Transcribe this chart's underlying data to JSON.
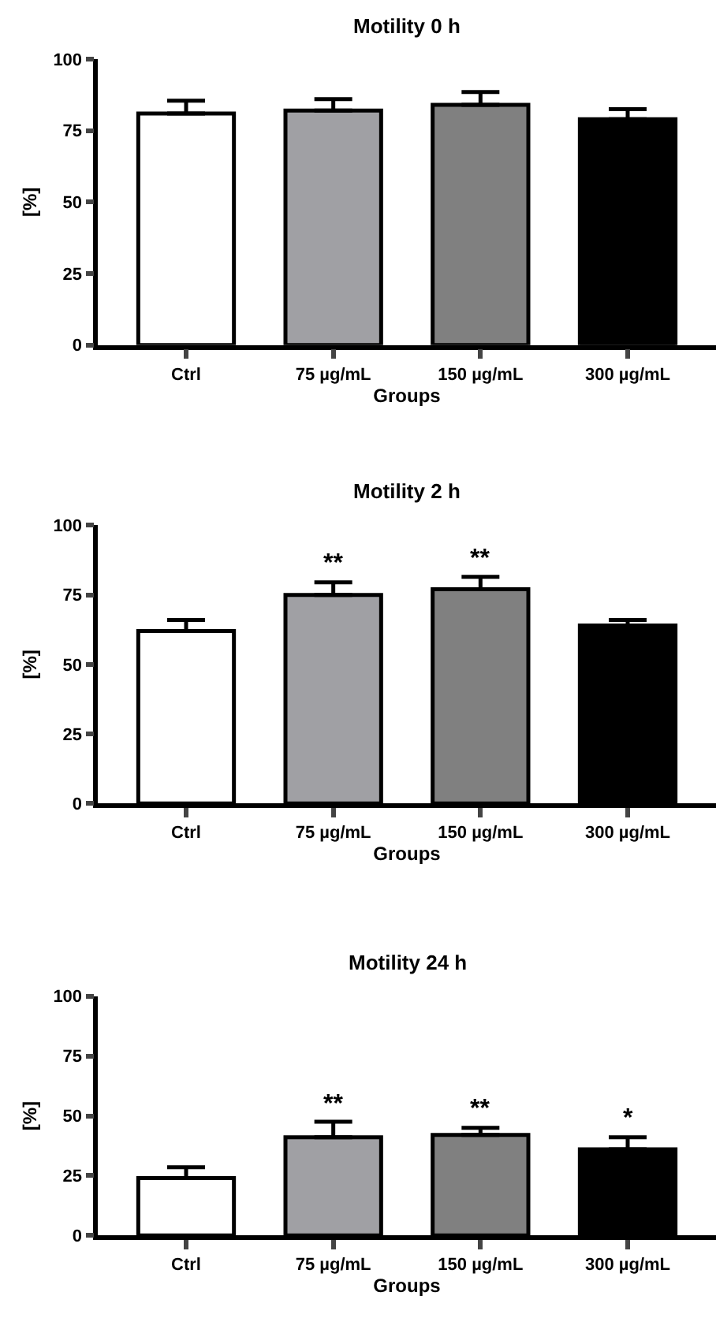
{
  "chart_data": [
    {
      "type": "bar",
      "title": "Motility 0 h",
      "xlabel": "Groups",
      "ylabel": "[%]",
      "categories": [
        "Ctrl",
        "75 µg/mL",
        "150 µg/mL",
        "300 µg/mL"
      ],
      "values": [
        81,
        82,
        84,
        79
      ],
      "colors": [
        "#ffffff",
        "#a0a0a4",
        "#808080",
        "#000000"
      ],
      "errors": [
        [
          81,
          85.5
        ],
        [
          82,
          86
        ],
        [
          84,
          88.5
        ],
        [
          79,
          82.5
        ]
      ],
      "ylim": [
        0,
        100
      ],
      "yticks": [
        0,
        25,
        50,
        75,
        100
      ]
    },
    {
      "type": "bar",
      "title": "Motility 2 h",
      "xlabel": "Groups",
      "ylabel": "[%]",
      "categories": [
        "Ctrl",
        "75 µg/mL",
        "150 µg/mL",
        "300 µg/mL"
      ],
      "values": [
        62,
        75,
        77,
        64
      ],
      "colors": [
        "#ffffff",
        "#a0a0a4",
        "#808080",
        "#000000"
      ],
      "errors": [
        [
          62,
          66
        ],
        [
          75,
          79.5
        ],
        [
          77,
          81.5
        ],
        [
          64,
          66
        ]
      ],
      "ylim": [
        0,
        100
      ],
      "yticks": [
        0,
        25,
        50,
        75,
        100
      ],
      "annotations": [
        {
          "text": "**",
          "x": "75 µg/mL",
          "y": 79.5
        },
        {
          "text": "**",
          "x": "150 µg/mL",
          "y": 81.5
        }
      ]
    },
    {
      "type": "bar",
      "title": "Motility 24 h",
      "xlabel": "Groups",
      "ylabel": "[%]",
      "categories": [
        "Ctrl",
        "75 µg/mL",
        "150 µg/mL",
        "300 µg/mL"
      ],
      "values": [
        24,
        41,
        42,
        36
      ],
      "colors": [
        "#ffffff",
        "#a0a0a4",
        "#808080",
        "#000000"
      ],
      "errors": [
        [
          24,
          28.5
        ],
        [
          41,
          47.5
        ],
        [
          42,
          45
        ],
        [
          36,
          41
        ]
      ],
      "ylim": [
        0,
        100
      ],
      "yticks": [
        0,
        25,
        50,
        75,
        100
      ],
      "annotations": [
        {
          "text": "**",
          "x": "75 µg/mL",
          "y": 47.5
        },
        {
          "text": "**",
          "x": "150 µg/mL",
          "y": 45
        },
        {
          "text": "*",
          "x": "300 µg/mL",
          "y": 41
        }
      ]
    }
  ]
}
